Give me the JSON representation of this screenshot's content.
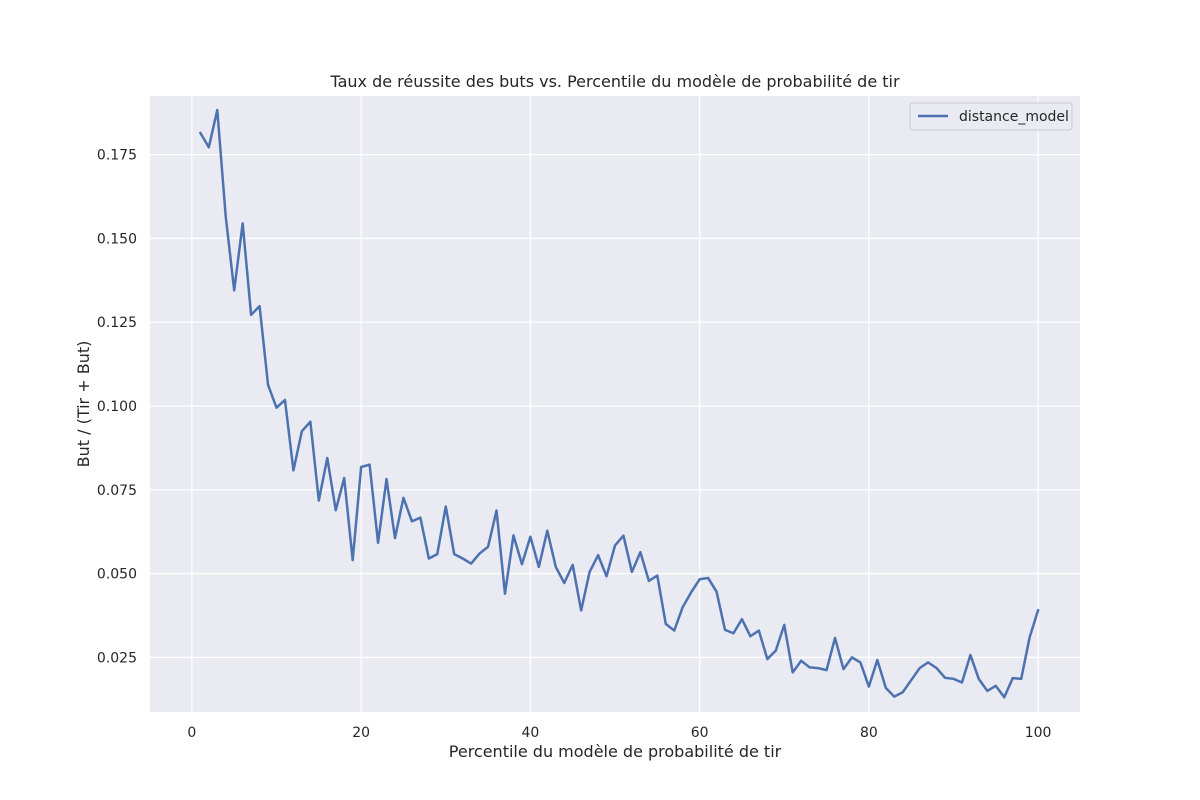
{
  "chart_data": {
    "type": "line",
    "title": "Taux de réussite des buts vs. Percentile du modèle de probabilité de tir",
    "xlabel": "Percentile du modèle de probabilité de tir",
    "ylabel": "But / (Tir + But)",
    "xlim": [
      -4.95,
      104.95
    ],
    "ylim": [
      0.0087,
      0.1925
    ],
    "xticks": [
      0,
      20,
      40,
      60,
      80,
      100
    ],
    "xtick_labels": [
      "0",
      "20",
      "40",
      "60",
      "80",
      "100"
    ],
    "yticks": [
      0.025,
      0.05,
      0.075,
      0.1,
      0.125,
      0.15,
      0.175
    ],
    "ytick_labels": [
      "0.025",
      "0.050",
      "0.075",
      "0.100",
      "0.125",
      "0.150",
      "0.175"
    ],
    "grid": true,
    "legend_position": "top-right",
    "background_color": "#eaeaf2",
    "series": [
      {
        "name": "distance_model",
        "color": "#4c72b0",
        "x": [
          1,
          2,
          3,
          4,
          5,
          6,
          7,
          8,
          9,
          10,
          11,
          12,
          13,
          14,
          15,
          16,
          17,
          18,
          19,
          20,
          21,
          22,
          23,
          24,
          25,
          26,
          27,
          28,
          29,
          30,
          31,
          32,
          33,
          34,
          35,
          36,
          37,
          38,
          39,
          40,
          41,
          42,
          43,
          44,
          45,
          46,
          47,
          48,
          49,
          50,
          51,
          52,
          53,
          54,
          55,
          56,
          57,
          58,
          59,
          60,
          61,
          62,
          63,
          64,
          65,
          66,
          67,
          68,
          69,
          70,
          71,
          72,
          73,
          74,
          75,
          76,
          77,
          78,
          79,
          80,
          81,
          82,
          83,
          84,
          85,
          86,
          87,
          88,
          89,
          90,
          91,
          92,
          93,
          94,
          95,
          96,
          97,
          98,
          99,
          100
        ],
        "y": [
          0.1815,
          0.1772,
          0.1883,
          0.1565,
          0.1345,
          0.1545,
          0.1272,
          0.1298,
          0.1063,
          0.0995,
          0.1018,
          0.0808,
          0.0925,
          0.0953,
          0.0718,
          0.0845,
          0.0689,
          0.0785,
          0.054,
          0.0818,
          0.0825,
          0.0592,
          0.0782,
          0.0606,
          0.0726,
          0.0656,
          0.0667,
          0.0545,
          0.0558,
          0.07,
          0.0558,
          0.0545,
          0.053,
          0.056,
          0.058,
          0.0688,
          0.044,
          0.0614,
          0.0528,
          0.061,
          0.052,
          0.0628,
          0.052,
          0.0472,
          0.0526,
          0.039,
          0.0505,
          0.0555,
          0.0492,
          0.0584,
          0.0613,
          0.0505,
          0.0564,
          0.0478,
          0.0494,
          0.035,
          0.033,
          0.04,
          0.0444,
          0.0483,
          0.0487,
          0.0446,
          0.0332,
          0.0322,
          0.0364,
          0.0313,
          0.033,
          0.0245,
          0.027,
          0.0347,
          0.0205,
          0.024,
          0.022,
          0.0218,
          0.0212,
          0.0308,
          0.0215,
          0.025,
          0.0235,
          0.0163,
          0.0242,
          0.0159,
          0.0133,
          0.0146,
          0.0182,
          0.0218,
          0.0235,
          0.0218,
          0.0189,
          0.0186,
          0.0175,
          0.0257,
          0.0185,
          0.015,
          0.0165,
          0.0131,
          0.0188,
          0.0186,
          0.031,
          0.0391
        ]
      }
    ]
  }
}
